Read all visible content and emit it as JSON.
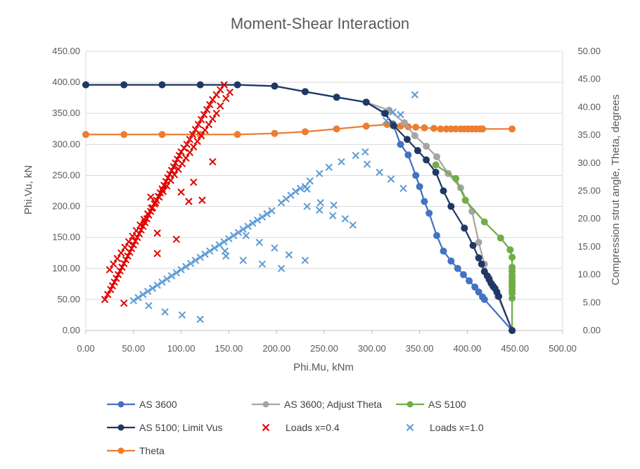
{
  "chart_data": {
    "type": "scatter",
    "title": "Moment-Shear Interaction",
    "xlabel": "Phi.Mu, kNm",
    "ylabel": "Phi.Vu, kN",
    "y2label": "Compression strut angle, Theta, degrees",
    "xlim": [
      0,
      500
    ],
    "ylim": [
      0,
      450
    ],
    "y2lim": [
      0,
      50
    ],
    "x_ticks": [
      "0.00",
      "50.00",
      "100.00",
      "150.00",
      "200.00",
      "250.00",
      "300.00",
      "350.00",
      "400.00",
      "450.00",
      "500.00"
    ],
    "y_ticks": [
      "0.00",
      "50.00",
      "100.00",
      "150.00",
      "200.00",
      "250.00",
      "300.00",
      "350.00",
      "400.00",
      "450.00"
    ],
    "y2_ticks": [
      "0.00",
      "5.00",
      "10.00",
      "15.00",
      "20.00",
      "25.00",
      "30.00",
      "35.00",
      "40.00",
      "45.00",
      "50.00"
    ],
    "grid": "horizontal",
    "legend_position": "bottom",
    "series": [
      {
        "name": "AS 3600",
        "color": "#4472C4",
        "marker": "circle",
        "line": true,
        "axis": "primary",
        "points": [
          [
            0,
            396
          ],
          [
            40,
            396
          ],
          [
            80,
            396
          ],
          [
            120,
            396
          ],
          [
            159,
            396
          ],
          [
            198,
            394
          ],
          [
            230,
            385
          ],
          [
            263,
            376
          ],
          [
            294,
            368
          ],
          [
            313,
            350
          ],
          [
            322,
            333
          ],
          [
            330,
            300
          ],
          [
            338,
            283
          ],
          [
            346,
            250
          ],
          [
            350,
            232
          ],
          [
            355,
            208
          ],
          [
            360,
            189
          ],
          [
            368,
            153
          ],
          [
            375,
            128
          ],
          [
            383,
            112
          ],
          [
            390,
            100
          ],
          [
            396,
            90
          ],
          [
            402,
            80
          ],
          [
            408,
            70
          ],
          [
            412,
            62
          ],
          [
            416,
            54
          ],
          [
            418,
            50
          ],
          [
            447,
            0
          ]
        ]
      },
      {
        "name": "AS 3600; Adjust Theta",
        "color": "#A5A5A5",
        "marker": "circle",
        "line": true,
        "axis": "primary",
        "points": [
          [
            294,
            368
          ],
          [
            318,
            355
          ],
          [
            334,
            335
          ],
          [
            345,
            314
          ],
          [
            357,
            297
          ],
          [
            368,
            280
          ],
          [
            380,
            253
          ],
          [
            393,
            230
          ],
          [
            405,
            192
          ],
          [
            412,
            142
          ],
          [
            418,
            107
          ],
          [
            423,
            85
          ],
          [
            427,
            70
          ],
          [
            432,
            55
          ],
          [
            447,
            0
          ]
        ]
      },
      {
        "name": "AS 5100",
        "color": "#70AD47",
        "marker": "circle",
        "line": true,
        "axis": "primary",
        "points": [
          [
            367,
            267
          ],
          [
            388,
            245
          ],
          [
            398,
            210
          ],
          [
            418,
            175
          ],
          [
            435,
            149
          ],
          [
            445,
            130
          ],
          [
            447,
            118
          ],
          [
            447,
            102
          ],
          [
            447,
            96
          ],
          [
            447,
            90
          ],
          [
            447,
            85
          ],
          [
            447,
            80
          ],
          [
            447,
            75
          ],
          [
            447,
            70
          ],
          [
            447,
            65
          ],
          [
            447,
            60
          ],
          [
            447,
            52
          ],
          [
            447,
            0
          ]
        ]
      },
      {
        "name": "AS 5100; Limit Vus",
        "color": "#203864",
        "marker": "circle",
        "line": true,
        "axis": "primary",
        "points": [
          [
            0,
            396
          ],
          [
            40,
            396
          ],
          [
            80,
            396
          ],
          [
            120,
            396
          ],
          [
            159,
            396
          ],
          [
            198,
            394
          ],
          [
            230,
            385
          ],
          [
            263,
            376
          ],
          [
            294,
            368
          ],
          [
            314,
            350
          ],
          [
            323,
            330
          ],
          [
            337,
            308
          ],
          [
            348,
            290
          ],
          [
            357,
            275
          ],
          [
            367,
            255
          ],
          [
            375,
            225
          ],
          [
            383,
            200
          ],
          [
            397,
            165
          ],
          [
            406,
            137
          ],
          [
            412,
            117
          ],
          [
            415,
            107
          ],
          [
            418,
            95
          ],
          [
            421,
            88
          ],
          [
            423,
            82
          ],
          [
            425,
            76
          ],
          [
            427,
            72
          ],
          [
            429,
            68
          ],
          [
            431,
            62
          ],
          [
            433,
            55
          ],
          [
            447,
            0
          ]
        ]
      },
      {
        "name": "Loads x=0.4",
        "color": "#E00000",
        "marker": "x",
        "line": false,
        "axis": "primary",
        "points": [
          [
            20,
            50
          ],
          [
            23,
            58
          ],
          [
            26,
            66
          ],
          [
            28,
            72
          ],
          [
            30,
            78
          ],
          [
            32,
            84
          ],
          [
            34,
            90
          ],
          [
            36,
            96
          ],
          [
            38,
            102
          ],
          [
            40,
            108
          ],
          [
            42,
            114
          ],
          [
            44,
            120
          ],
          [
            46,
            126
          ],
          [
            48,
            132
          ],
          [
            50,
            138
          ],
          [
            52,
            144
          ],
          [
            54,
            150
          ],
          [
            56,
            156
          ],
          [
            58,
            162
          ],
          [
            60,
            168
          ],
          [
            62,
            174
          ],
          [
            64,
            180
          ],
          [
            66,
            186
          ],
          [
            68,
            192
          ],
          [
            70,
            198
          ],
          [
            72,
            204
          ],
          [
            74,
            210
          ],
          [
            76,
            216
          ],
          [
            78,
            222
          ],
          [
            80,
            228
          ],
          [
            82,
            234
          ],
          [
            84,
            240
          ],
          [
            86,
            246
          ],
          [
            88,
            252
          ],
          [
            90,
            258
          ],
          [
            92,
            264
          ],
          [
            94,
            270
          ],
          [
            96,
            276
          ],
          [
            98,
            282
          ],
          [
            100,
            288
          ],
          [
            103,
            294
          ],
          [
            106,
            300
          ],
          [
            109,
            308
          ],
          [
            112,
            316
          ],
          [
            115,
            324
          ],
          [
            118,
            332
          ],
          [
            121,
            340
          ],
          [
            124,
            348
          ],
          [
            127,
            356
          ],
          [
            130,
            364
          ],
          [
            133,
            372
          ],
          [
            137,
            380
          ],
          [
            141,
            388
          ],
          [
            145,
            396
          ],
          [
            151,
            384
          ],
          [
            147,
            374
          ],
          [
            141,
            362
          ],
          [
            137,
            350
          ],
          [
            133,
            341
          ],
          [
            129,
            332
          ],
          [
            125,
            323
          ],
          [
            121,
            314
          ],
          [
            117,
            305
          ],
          [
            113,
            296
          ],
          [
            109,
            287
          ],
          [
            105,
            278
          ],
          [
            101,
            269
          ],
          [
            97,
            260
          ],
          [
            93,
            251
          ],
          [
            89,
            242
          ],
          [
            85,
            233
          ],
          [
            81,
            224
          ],
          [
            77,
            215
          ],
          [
            73,
            206
          ],
          [
            69,
            197
          ],
          [
            65,
            188
          ],
          [
            61,
            179
          ],
          [
            57,
            170
          ],
          [
            53,
            161
          ],
          [
            49,
            152
          ],
          [
            45,
            143
          ],
          [
            41,
            134
          ],
          [
            37,
            125
          ],
          [
            33,
            116
          ],
          [
            29,
            107
          ],
          [
            25,
            98
          ],
          [
            40,
            44
          ],
          [
            75,
            124
          ],
          [
            75,
            157
          ],
          [
            95,
            147
          ],
          [
            100,
            223
          ],
          [
            108,
            208
          ],
          [
            113,
            239
          ],
          [
            122,
            210
          ],
          [
            133,
            272
          ],
          [
            68,
            215
          ]
        ]
      },
      {
        "name": "Loads x=1.0",
        "color": "#5B9BD5",
        "marker": "x",
        "line": false,
        "axis": "primary",
        "points": [
          [
            50,
            48
          ],
          [
            55,
            53
          ],
          [
            60,
            58
          ],
          [
            65,
            63
          ],
          [
            70,
            68
          ],
          [
            75,
            73
          ],
          [
            80,
            78
          ],
          [
            85,
            83
          ],
          [
            90,
            88
          ],
          [
            95,
            93
          ],
          [
            100,
            98
          ],
          [
            105,
            103
          ],
          [
            110,
            108
          ],
          [
            115,
            113
          ],
          [
            120,
            118
          ],
          [
            125,
            123
          ],
          [
            130,
            128
          ],
          [
            135,
            133
          ],
          [
            140,
            138
          ],
          [
            145,
            143
          ],
          [
            150,
            148
          ],
          [
            155,
            153
          ],
          [
            160,
            158
          ],
          [
            165,
            163
          ],
          [
            170,
            168
          ],
          [
            175,
            173
          ],
          [
            180,
            178
          ],
          [
            185,
            183
          ],
          [
            190,
            188
          ],
          [
            195,
            193
          ],
          [
            205,
            206
          ],
          [
            210,
            212
          ],
          [
            215,
            218
          ],
          [
            220,
            224
          ],
          [
            225,
            229
          ],
          [
            230,
            232
          ],
          [
            235,
            241
          ],
          [
            245,
            253
          ],
          [
            255,
            263
          ],
          [
            268,
            272
          ],
          [
            283,
            282
          ],
          [
            293,
            288
          ],
          [
            315,
            338
          ],
          [
            330,
            348
          ],
          [
            345,
            380
          ],
          [
            66,
            40
          ],
          [
            83,
            30
          ],
          [
            101,
            25
          ],
          [
            120,
            18
          ],
          [
            147,
            120
          ],
          [
            165,
            113
          ],
          [
            185,
            107
          ],
          [
            205,
            100
          ],
          [
            230,
            113
          ],
          [
            146,
            128
          ],
          [
            168,
            153
          ],
          [
            182,
            142
          ],
          [
            198,
            133
          ],
          [
            213,
            122
          ],
          [
            232,
            200
          ],
          [
            245,
            194
          ],
          [
            259,
            185
          ],
          [
            272,
            180
          ],
          [
            280,
            170
          ],
          [
            246,
            206
          ],
          [
            232,
            228
          ],
          [
            260,
            202
          ],
          [
            295,
            268
          ],
          [
            308,
            255
          ],
          [
            320,
            244
          ],
          [
            333,
            229
          ],
          [
            322,
            352
          ]
        ]
      },
      {
        "name": "Theta",
        "color": "#ED7D31",
        "marker": "circle",
        "line": true,
        "axis": "secondary",
        "points": [
          [
            0,
            35.1
          ],
          [
            40,
            35.1
          ],
          [
            80,
            35.1
          ],
          [
            120,
            35.1
          ],
          [
            159,
            35.1
          ],
          [
            198,
            35.3
          ],
          [
            230,
            35.6
          ],
          [
            263,
            36.1
          ],
          [
            294,
            36.6
          ],
          [
            316,
            36.9
          ],
          [
            322,
            36.7
          ],
          [
            330,
            36.6
          ],
          [
            338,
            36.5
          ],
          [
            346,
            36.4
          ],
          [
            355,
            36.3
          ],
          [
            365,
            36.2
          ],
          [
            372,
            36.1
          ],
          [
            378,
            36.1
          ],
          [
            383,
            36.1
          ],
          [
            388,
            36.1
          ],
          [
            393,
            36.1
          ],
          [
            397,
            36.1
          ],
          [
            401,
            36.1
          ],
          [
            405,
            36.1
          ],
          [
            409,
            36.1
          ],
          [
            413,
            36.1
          ],
          [
            416,
            36.1
          ],
          [
            447,
            36.1
          ]
        ]
      }
    ]
  },
  "legend": [
    {
      "label": "AS 3600",
      "color": "#4472C4",
      "marker": "circle-line"
    },
    {
      "label": "AS 3600; Adjust Theta",
      "color": "#A5A5A5",
      "marker": "circle-line"
    },
    {
      "label": "AS 5100",
      "color": "#70AD47",
      "marker": "circle-line"
    },
    {
      "label": "AS 5100; Limit Vus",
      "color": "#203864",
      "marker": "circle-line"
    },
    {
      "label": "Loads x=0.4",
      "color": "#E00000",
      "marker": "x"
    },
    {
      "label": "Loads x=1.0",
      "color": "#5B9BD5",
      "marker": "x"
    },
    {
      "label": "Theta",
      "color": "#ED7D31",
      "marker": "circle-line"
    }
  ]
}
